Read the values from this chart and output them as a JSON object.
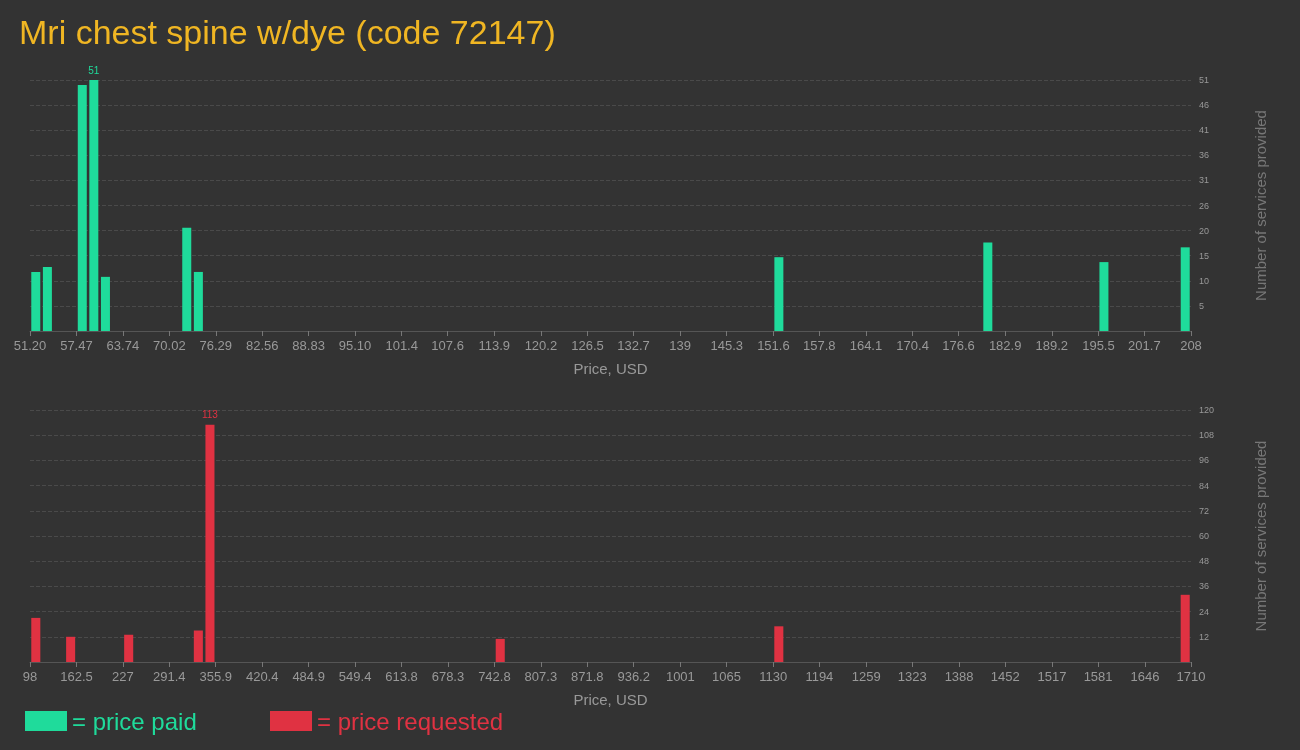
{
  "chart_data": [
    {
      "type": "bar",
      "title": "Mri chest spine w/dye (code 72147)",
      "xlabel": "Price, USD",
      "ylabel": "Number of services provided",
      "xlim": [
        51.2,
        208
      ],
      "xticks": [
        {
          "value": 51.2,
          "label": "51.20"
        },
        {
          "value": 57.47,
          "label": "57.47"
        },
        {
          "value": 63.74,
          "label": "63.74"
        },
        {
          "value": 70.02,
          "label": "70.02"
        },
        {
          "value": 76.29,
          "label": "76.29"
        },
        {
          "value": 82.56,
          "label": "82.56"
        },
        {
          "value": 88.83,
          "label": "88.83"
        },
        {
          "value": 95.1,
          "label": "95.10"
        },
        {
          "value": 101.4,
          "label": "101.4"
        },
        {
          "value": 107.6,
          "label": "107.6"
        },
        {
          "value": 113.9,
          "label": "113.9"
        },
        {
          "value": 120.2,
          "label": "120.2"
        },
        {
          "value": 126.5,
          "label": "126.5"
        },
        {
          "value": 132.7,
          "label": "132.7"
        },
        {
          "value": 139,
          "label": "139"
        },
        {
          "value": 145.3,
          "label": "145.3"
        },
        {
          "value": 151.6,
          "label": "151.6"
        },
        {
          "value": 157.8,
          "label": "157.8"
        },
        {
          "value": 164.1,
          "label": "164.1"
        },
        {
          "value": 170.4,
          "label": "170.4"
        },
        {
          "value": 176.6,
          "label": "176.6"
        },
        {
          "value": 182.9,
          "label": "182.9"
        },
        {
          "value": 189.2,
          "label": "189.2"
        },
        {
          "value": 195.5,
          "label": "195.5"
        },
        {
          "value": 201.7,
          "label": "201.7"
        },
        {
          "value": 208,
          "label": "208"
        }
      ],
      "ylim": [
        0,
        51
      ],
      "yticks": [
        {
          "value": 5.1,
          "label": "5"
        },
        {
          "value": 10.2,
          "label": "10"
        },
        {
          "value": 15.3,
          "label": "15"
        },
        {
          "value": 20.4,
          "label": "20"
        },
        {
          "value": 25.5,
          "label": "26"
        },
        {
          "value": 30.6,
          "label": "31"
        },
        {
          "value": 35.7,
          "label": "36"
        },
        {
          "value": 40.8,
          "label": "41"
        },
        {
          "value": 45.9,
          "label": "46"
        },
        {
          "value": 51,
          "label": "51"
        }
      ],
      "grid": "y",
      "legend": "bottom left",
      "series": [
        {
          "name": "= price paid",
          "color": "#1fdb9b",
          "x": [
            51.98,
            53.55,
            58.26,
            59.82,
            61.39,
            72.37,
            73.94,
            152.34,
            180.56,
            196.24,
            207.22
          ],
          "values": [
            12,
            13,
            50,
            51,
            11,
            21,
            12,
            15,
            18,
            14,
            17
          ],
          "value_labels": [
            null,
            null,
            null,
            "51",
            null,
            null,
            null,
            null,
            null,
            null,
            null
          ]
        }
      ]
    },
    {
      "type": "bar",
      "xlabel": "Price, USD",
      "ylabel": "Number of services provided",
      "xlim": [
        98,
        1710
      ],
      "xticks": [
        98,
        162.5,
        227,
        291.4,
        355.9,
        420.4,
        484.9,
        549.4,
        613.8,
        678.3,
        742.8,
        807.3,
        871.8,
        936.2,
        1001,
        1065,
        1130,
        1194,
        1259,
        1323,
        1388,
        1452,
        1517,
        1581,
        1646,
        1710
      ],
      "ylim": [
        0,
        120
      ],
      "yticks": [
        12,
        24,
        36,
        48,
        60,
        72,
        84,
        96,
        108,
        120
      ],
      "grid": "y",
      "legend": "bottom left",
      "series": [
        {
          "name": "= price requested",
          "color": "#e03242",
          "x": [
            106.06,
            154.42,
            235.02,
            331.74,
            347.86,
            750.9,
            1137.7,
            1701.94
          ],
          "values": [
            21,
            12,
            13,
            15,
            113,
            11,
            17,
            32
          ],
          "value_labels": [
            null,
            null,
            null,
            null,
            "113",
            null,
            null,
            null
          ]
        }
      ]
    }
  ]
}
